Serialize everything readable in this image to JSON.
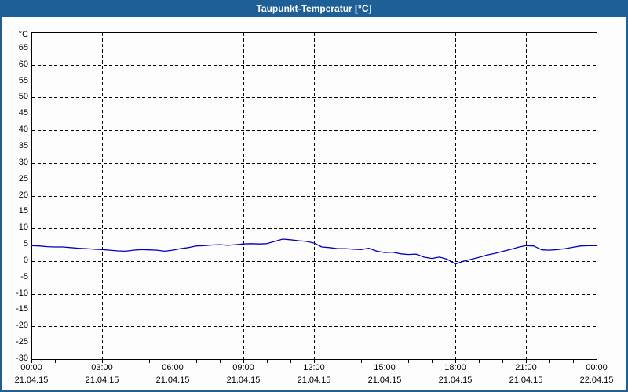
{
  "window": {
    "title": "Taupunkt-Temperatur [°C]",
    "title_bar_color": "#1e5f96",
    "border_color": "#1e5f96",
    "background_color": "#fdfdfd"
  },
  "chart_data": {
    "type": "line",
    "title": "Taupunkt-Temperatur [°C]",
    "y_unit": "°C",
    "xlabel": "",
    "ylabel": "°C",
    "ylim": [
      -30,
      70
    ],
    "y_ticks": [
      65,
      60,
      55,
      50,
      45,
      40,
      35,
      30,
      25,
      20,
      15,
      10,
      5,
      0,
      -5,
      -10,
      -15,
      -20,
      -25,
      -30
    ],
    "grid": {
      "style": "dashed",
      "color": "#000000",
      "legend": "none"
    },
    "x_axis": {
      "unit": "hours",
      "range_hours": [
        0,
        24
      ],
      "minor_tick_interval_hours": 1,
      "major_ticks": [
        {
          "hour": 0,
          "time": "00:00",
          "date": "21.04.15"
        },
        {
          "hour": 3,
          "time": "03:00",
          "date": "21.04.15"
        },
        {
          "hour": 6,
          "time": "06:00",
          "date": "21.04.15"
        },
        {
          "hour": 9,
          "time": "09:00",
          "date": "21.04.15"
        },
        {
          "hour": 12,
          "time": "12:00",
          "date": "21.04.15"
        },
        {
          "hour": 15,
          "time": "15:00",
          "date": "21.04.15"
        },
        {
          "hour": 18,
          "time": "18:00",
          "date": "21.04.15"
        },
        {
          "hour": 21,
          "time": "21:00",
          "date": "21.04.15"
        },
        {
          "hour": 24,
          "time": "00:00",
          "date": "22.04.15"
        }
      ]
    },
    "series": [
      {
        "color": "#0000c0",
        "points_hour_degC": [
          [
            0,
            4.7
          ],
          [
            0.33,
            4.6
          ],
          [
            0.67,
            4.4
          ],
          [
            1,
            4.3
          ],
          [
            1.33,
            4.3
          ],
          [
            1.67,
            4.1
          ],
          [
            2,
            3.9
          ],
          [
            2.33,
            3.8
          ],
          [
            2.67,
            3.6
          ],
          [
            3,
            3.5
          ],
          [
            3.33,
            3.3
          ],
          [
            3.67,
            3.1
          ],
          [
            4,
            3.0
          ],
          [
            4.33,
            3.3
          ],
          [
            4.67,
            3.5
          ],
          [
            5,
            3.4
          ],
          [
            5.33,
            3.3
          ],
          [
            5.67,
            3.0
          ],
          [
            6,
            3.3
          ],
          [
            6.33,
            3.8
          ],
          [
            6.67,
            4.1
          ],
          [
            7,
            4.6
          ],
          [
            7.33,
            4.7
          ],
          [
            7.67,
            4.9
          ],
          [
            8,
            5.0
          ],
          [
            8.33,
            4.8
          ],
          [
            8.67,
            5.0
          ],
          [
            9,
            5.2
          ],
          [
            9.33,
            5.3
          ],
          [
            9.67,
            5.2
          ],
          [
            10,
            5.3
          ],
          [
            10.33,
            6.0
          ],
          [
            10.67,
            6.7
          ],
          [
            11,
            6.5
          ],
          [
            11.33,
            6.2
          ],
          [
            11.67,
            6.0
          ],
          [
            12,
            5.5
          ],
          [
            12.33,
            4.3
          ],
          [
            12.67,
            4.1
          ],
          [
            13,
            3.8
          ],
          [
            13.33,
            3.8
          ],
          [
            13.67,
            3.6
          ],
          [
            14,
            3.5
          ],
          [
            14.33,
            3.9
          ],
          [
            14.67,
            3.0
          ],
          [
            15,
            2.6
          ],
          [
            15.33,
            2.7
          ],
          [
            15.67,
            2.2
          ],
          [
            16,
            2.0
          ],
          [
            16.33,
            2.1
          ],
          [
            16.67,
            1.2
          ],
          [
            17,
            0.8
          ],
          [
            17.33,
            1.2
          ],
          [
            17.67,
            0.5
          ],
          [
            18,
            -0.9
          ],
          [
            18.33,
            -0.1
          ],
          [
            18.67,
            0.5
          ],
          [
            19,
            1.1
          ],
          [
            19.33,
            1.8
          ],
          [
            19.67,
            2.3
          ],
          [
            20,
            2.9
          ],
          [
            20.33,
            3.5
          ],
          [
            20.67,
            4.2
          ],
          [
            21,
            4.7
          ],
          [
            21.33,
            4.6
          ],
          [
            21.67,
            3.4
          ],
          [
            22,
            3.3
          ],
          [
            22.33,
            3.5
          ],
          [
            22.67,
            3.8
          ],
          [
            23,
            4.2
          ],
          [
            23.33,
            4.6
          ],
          [
            23.67,
            4.7
          ],
          [
            24,
            4.7
          ]
        ]
      }
    ]
  }
}
